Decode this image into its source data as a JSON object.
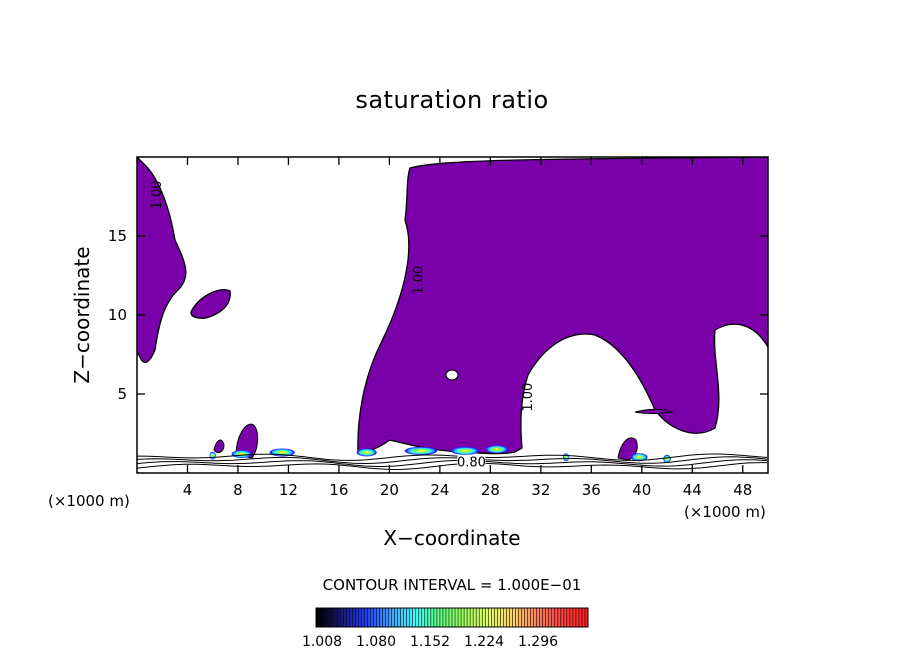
{
  "chart_data": {
    "type": "heatmap",
    "title": "saturation ratio",
    "xlabel": "X−coordinate",
    "ylabel": "Z−coordinate",
    "x_unit": "(×1000 m)",
    "y_unit": "(×1000 m)",
    "xlim": [
      0,
      50
    ],
    "ylim": [
      0,
      20
    ],
    "xticks": [
      4,
      8,
      12,
      16,
      20,
      24,
      28,
      32,
      36,
      40,
      44,
      48
    ],
    "yticks": [
      5,
      10,
      15
    ],
    "contour_interval_text": "CONTOUR INTERVAL = 1.000E−01",
    "contour_labels": [
      {
        "text": "1.00",
        "x": 22.3,
        "y": 12.2
      },
      {
        "text": "1.00",
        "x": 31.0,
        "y": 4.8
      },
      {
        "text": "1.00",
        "x": 1.6,
        "y": 17.6
      },
      {
        "text": "0.80",
        "x": 26.5,
        "y": 0.65
      }
    ],
    "colorbar": {
      "ticks": [
        "1.008",
        "1.080",
        "1.152",
        "1.224",
        "1.296"
      ],
      "colors": [
        "#000000",
        "#1a1a80",
        "#2040ff",
        "#40a0ff",
        "#40ffff",
        "#60ff80",
        "#a0ff60",
        "#e0ff60",
        "#ffd060",
        "#ff8060",
        "#ff4040",
        "#ff2020"
      ]
    },
    "fill_color": "#7a00aa"
  }
}
